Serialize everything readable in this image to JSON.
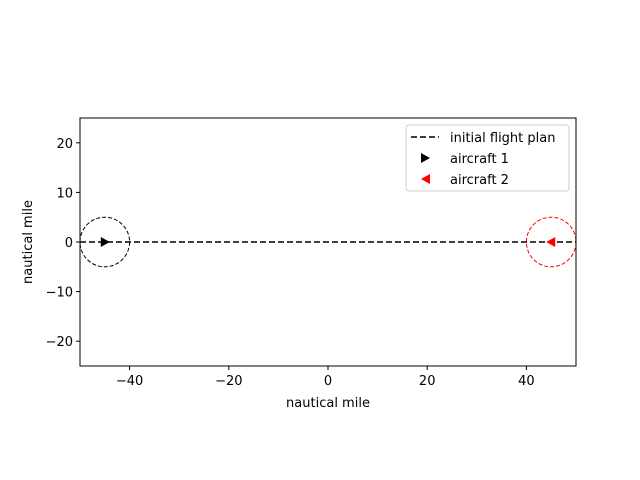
{
  "chart_data": {
    "type": "line",
    "title": "",
    "xlabel": "nautical mile",
    "ylabel": "nautical mile",
    "xlim": [
      -50,
      50
    ],
    "ylim": [
      -25,
      25
    ],
    "xticks": [
      -40,
      -20,
      0,
      20,
      40
    ],
    "yticks": [
      -20,
      -10,
      0,
      10,
      20
    ],
    "xtick_labels": [
      "−40",
      "−20",
      "0",
      "20",
      "40"
    ],
    "ytick_labels": [
      "−20",
      "−10",
      "0",
      "10",
      "20"
    ],
    "grid": false,
    "legend_position": "upper right",
    "flight_plan": {
      "name": "initial flight plan",
      "x": [
        -50,
        50
      ],
      "y": [
        0,
        0
      ],
      "color": "#000000",
      "style": "dashed"
    },
    "aircraft": [
      {
        "name": "aircraft 1",
        "x": -45,
        "y": 0,
        "marker": "triangle-right",
        "color": "#000000",
        "circle_radius": 5
      },
      {
        "name": "aircraft 2",
        "x": 45,
        "y": 0,
        "marker": "triangle-left",
        "color": "#ff0000",
        "circle_radius": 5
      }
    ],
    "legend": [
      "initial flight plan",
      "aircraft 1",
      "aircraft 2"
    ]
  }
}
